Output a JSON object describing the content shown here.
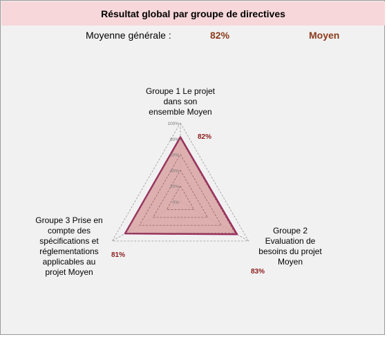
{
  "title": "Résultat global par groupe de directives",
  "summary": {
    "label": "Moyenne générale :",
    "value": "82%",
    "rating": "Moyen"
  },
  "colors": {
    "fill": "#d9a3a3",
    "stroke": "#9b3060",
    "grid": "#999999",
    "title_bg": "#f7d7da",
    "value_text": "#8b1a1a"
  },
  "chart_data": {
    "type": "radar",
    "title": "Résultat global par groupe de directives",
    "categories": [
      "Groupe 1 Le projet dans son ensemble Moyen",
      "Groupe 2 Evaluation de besoins du projet Moyen",
      "Groupe 3 Prise en compte des spécifications et réglementations applicables au projet Moyen"
    ],
    "category_lines": [
      [
        "Groupe 1 Le projet",
        "dans son",
        "ensemble Moyen"
      ],
      [
        "Groupe 2",
        "Evaluation de",
        "besoins du projet",
        "Moyen"
      ],
      [
        "Groupe 3 Prise en",
        "compte des",
        "spécifications et",
        "réglementations",
        "applicables au",
        "projet Moyen"
      ]
    ],
    "values": [
      0.82,
      0.83,
      0.81
    ],
    "value_labels": [
      "82%",
      "83%",
      "81%"
    ],
    "rlim": [
      0,
      1
    ],
    "ticks": [
      0,
      0.2,
      0.4,
      0.6,
      0.8,
      1.0
    ],
    "tick_labels": [
      "0%",
      "20%",
      "40%",
      "60%",
      "80%",
      "100%"
    ]
  }
}
